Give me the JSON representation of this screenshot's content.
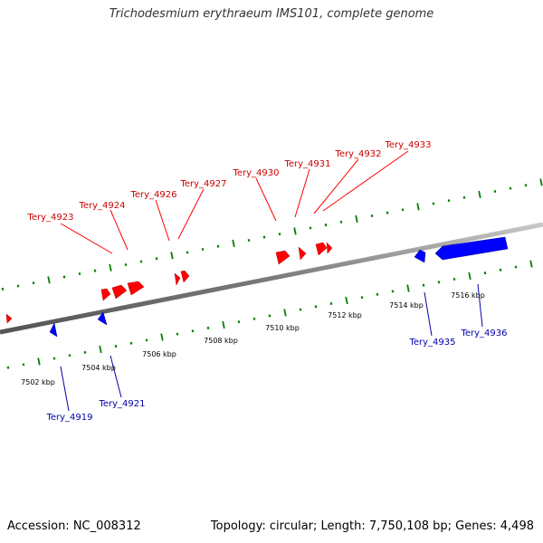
{
  "title": "Trichodesmium erythraeum IMS101, complete genome",
  "footer": {
    "accession": "Accession: NC_008312",
    "summary": "Topology: circular; Length: 7,750,108 bp; Genes: 4,498"
  },
  "scale_labels": [
    "7502 kbp",
    "7504 kbp",
    "7506 kbp",
    "7508 kbp",
    "7510 kbp",
    "7512 kbp",
    "7514 kbp",
    "7516 kbp"
  ],
  "genes_forward": [
    "Tery_4923",
    "Tery_4924",
    "Tery_4926",
    "Tery_4927",
    "Tery_4930",
    "Tery_4931",
    "Tery_4932",
    "Tery_4933"
  ],
  "genes_reverse": [
    "Tery_4919",
    "Tery_4921",
    "Tery_4935",
    "Tery_4936"
  ],
  "colors": {
    "forward": "#ff0000",
    "reverse": "#0000ff",
    "forward_label": "#cc0000",
    "reverse_label": "#0000aa",
    "ticks": "#008000",
    "backbone": "#808080"
  }
}
